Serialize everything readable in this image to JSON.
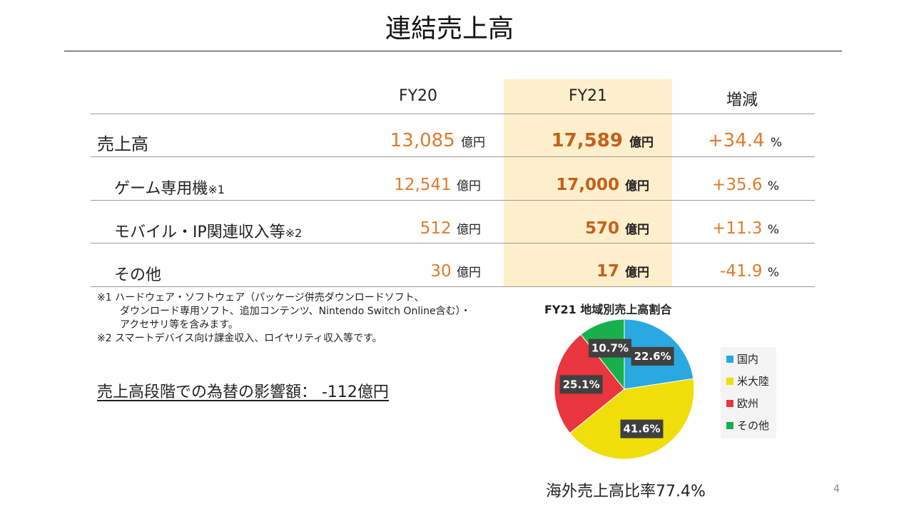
{
  "title": "連結売上高",
  "table": {
    "headers": [
      "FY20",
      "FY21",
      "増減"
    ],
    "rows": [
      {
        "label": "売上高",
        "note": "",
        "fy20": "13,085",
        "fy20_unit": "億円",
        "fy21": "17,589",
        "fy21_unit": "億円",
        "change": "+34.4",
        "change_unit": "%"
      },
      {
        "label": "ゲーム専用機",
        "note": "※1",
        "fy20": "12,541",
        "fy20_unit": "億円",
        "fy21": "17,000",
        "fy21_unit": "億円",
        "change": "+35.6",
        "change_unit": "%"
      },
      {
        "label": "モバイル・IP関連収入等",
        "note": "※2",
        "fy20": "512",
        "fy20_unit": "億円",
        "fy21": "570",
        "fy21_unit": "億円",
        "change": "+11.3",
        "change_unit": "%"
      },
      {
        "label": "その他",
        "note": "",
        "fy20": "30",
        "fy20_unit": "億円",
        "fy21": "17",
        "fy21_unit": "億円",
        "change": "-41.9",
        "change_unit": "%"
      }
    ]
  },
  "footnotes": [
    "※1 ハードウェア・ソフトウェア（パッケージ併売ダウンロードソフト、",
    "ダウンロード専用ソフト、追加コンテンツ、Nintendo Switch Online含む）・",
    "アクセサリ等を含みます。",
    "※2 スマートデバイス向け課金収入、ロイヤリティ収入等です。"
  ],
  "fx_impact": "売上高段階での為替の影響額： -112億円",
  "chart_data": {
    "type": "pie",
    "title": "FY21 地域別売上高割合",
    "categories": [
      "国内",
      "米大陸",
      "欧州",
      "その他"
    ],
    "values": [
      22.6,
      41.6,
      25.1,
      10.7
    ],
    "labels": [
      "22.6%",
      "41.6%",
      "25.1%",
      "10.7%"
    ],
    "colors": [
      "#2aa8e0",
      "#f0de0a",
      "#e8353e",
      "#17b04c"
    ],
    "legend": "right"
  },
  "overseas_ratio": "海外売上高比率77.4%",
  "page_number": "4",
  "colors": {
    "accent": "#e07b2c",
    "highlight": "#fdefcc"
  }
}
